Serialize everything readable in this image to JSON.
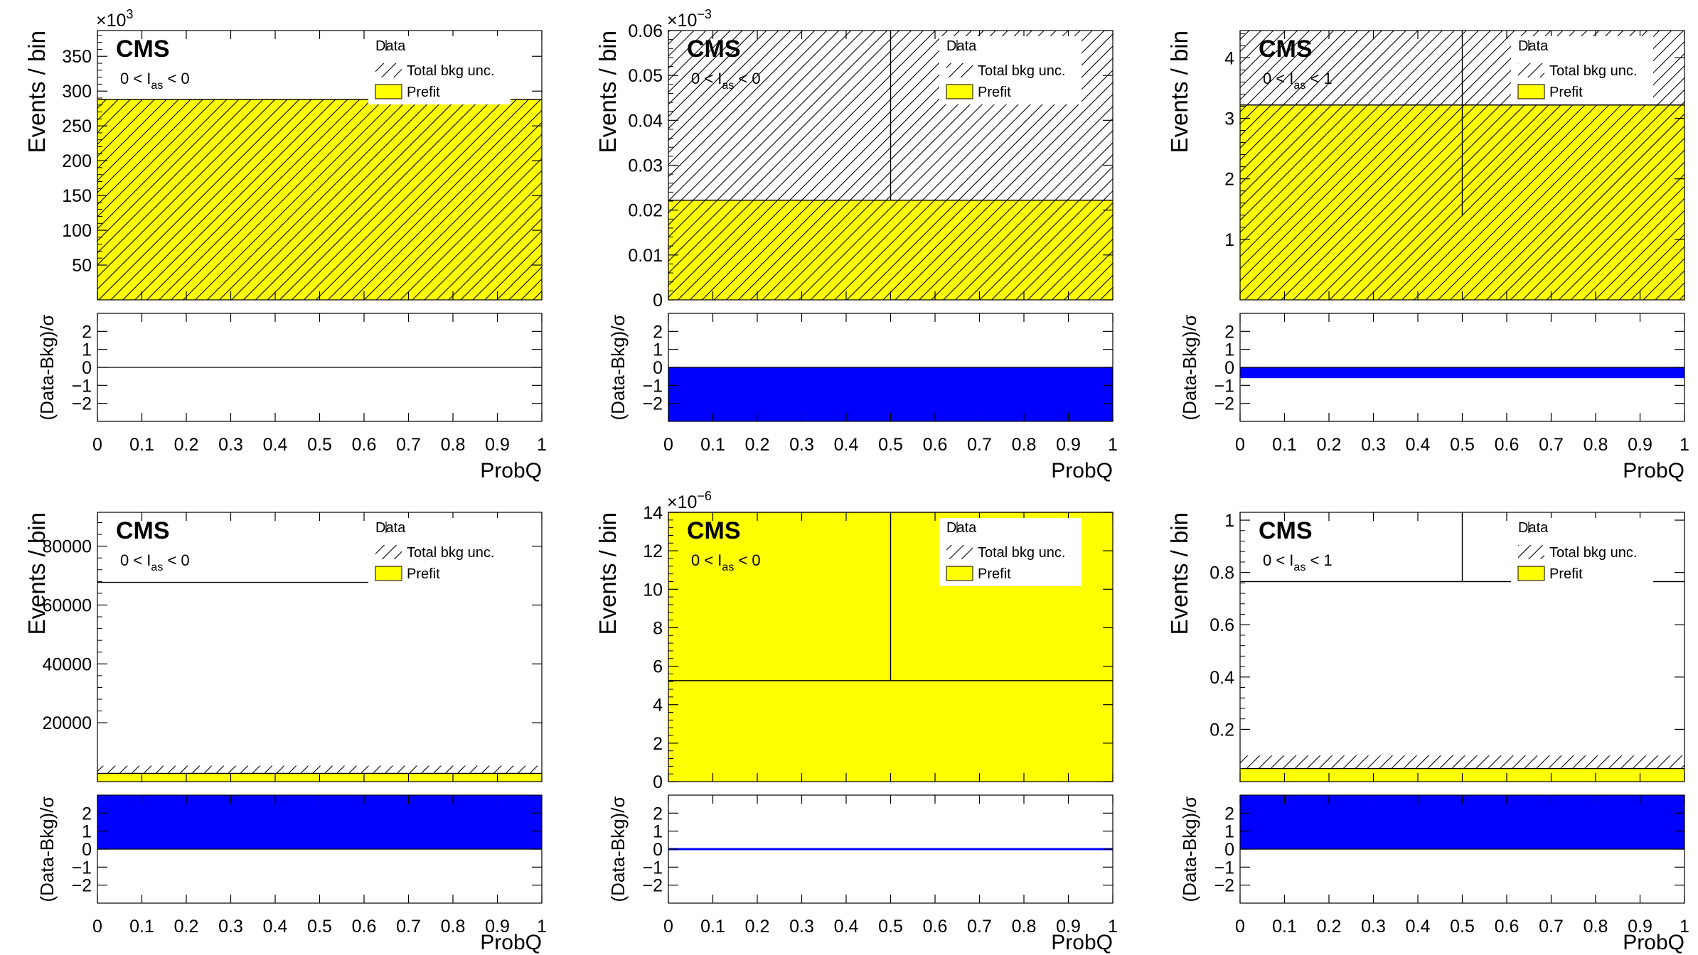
{
  "figure": {
    "colors": {
      "prefit": "#ffff00",
      "data": "#000000",
      "ratio": "#0000ff",
      "frame": "#000000",
      "hatch": "#000000"
    }
  },
  "chart_data": [
    {
      "type": "bar",
      "panel": "top-left",
      "label": "CMS",
      "region": {
        "pre": "0 < I",
        "sub": "as",
        "post": " < 0"
      },
      "legend": {
        "data": "Data",
        "unc": "Total bkg unc.",
        "prefit": "Prefit",
        "placement": "top-right"
      },
      "xlabel": "ProbQ",
      "ylabel": "Events / bin",
      "ratio_ylabel": "(Data-Bkg)/σ",
      "exponent": {
        "base": "×10",
        "power": "3"
      },
      "scale": 1000,
      "ylim": [
        0,
        387
      ],
      "yticks": [
        50,
        100,
        150,
        200,
        250,
        300,
        350
      ],
      "xlim": [
        0,
        1
      ],
      "xticks": [
        0,
        0.1,
        0.2,
        0.3,
        0.4,
        0.5,
        0.6,
        0.7,
        0.8,
        0.9,
        1
      ],
      "x_tick_labels": [
        "0",
        "0.1",
        "0.2",
        "0.3",
        "0.4",
        "0.5",
        "0.6",
        "0.7",
        "0.8",
        "0.9",
        "1"
      ],
      "ratio_ylim": [
        -3,
        3
      ],
      "ratio_yticks": [
        -2,
        -1,
        0,
        1,
        2
      ],
      "bins": [
        {
          "x0": 0,
          "x1": 1,
          "prefit": 288,
          "unc_low": 0,
          "unc_high": 288,
          "data": 288
        }
      ],
      "ratio": [
        {
          "x0": 0,
          "x1": 1,
          "value": 0
        }
      ],
      "series": [
        {
          "name": "Prefit"
        },
        {
          "name": "Total bkg unc."
        },
        {
          "name": "Data"
        }
      ]
    },
    {
      "type": "bar",
      "panel": "top-center",
      "label": "CMS",
      "region": {
        "pre": "0 < I",
        "sub": "as",
        "post": " < 0"
      },
      "legend": {
        "data": "Data",
        "unc": "Total bkg unc.",
        "prefit": "Prefit",
        "placement": "top-right"
      },
      "xlabel": "ProbQ",
      "ylabel": "Events / bin",
      "ratio_ylabel": "(Data-Bkg)/σ",
      "exponent": {
        "base": "×10",
        "power": "−3"
      },
      "scale": 0.001,
      "ylim": [
        0,
        0.06
      ],
      "yticks": [
        0,
        0.01,
        0.02,
        0.03,
        0.04,
        0.05,
        0.06
      ],
      "xlim": [
        0,
        1
      ],
      "xticks": [
        0,
        0.1,
        0.2,
        0.3,
        0.4,
        0.5,
        0.6,
        0.7,
        0.8,
        0.9,
        1
      ],
      "x_tick_labels": [
        "0",
        "0.1",
        "0.2",
        "0.3",
        "0.4",
        "0.5",
        "0.6",
        "0.7",
        "0.8",
        "0.9",
        "1"
      ],
      "ratio_ylim": [
        -3,
        3
      ],
      "ratio_yticks": [
        -2,
        -1,
        0,
        1,
        2
      ],
      "bins": [
        {
          "x0": 0,
          "x1": 1,
          "prefit": 0.0222,
          "unc_low": 0,
          "unc_high": 0.06,
          "data": 0.0222
        }
      ],
      "errorbars": [
        {
          "x": 0.5,
          "low": 0.0222,
          "high": 0.06
        }
      ],
      "ratio": [
        {
          "x0": 0,
          "x1": 1,
          "value": -3
        }
      ],
      "series": [
        {
          "name": "Prefit"
        },
        {
          "name": "Total bkg unc."
        },
        {
          "name": "Data"
        }
      ]
    },
    {
      "type": "bar",
      "panel": "top-right",
      "label": "CMS",
      "region": {
        "pre": "0 < I",
        "sub": "as",
        "post": " < 1"
      },
      "legend": {
        "data": "Data",
        "unc": "Total bkg unc.",
        "prefit": "Prefit",
        "placement": "top-right"
      },
      "xlabel": "ProbQ",
      "ylabel": "Events / bin",
      "ratio_ylabel": "(Data-Bkg)/σ",
      "exponent": null,
      "scale": 1,
      "ylim": [
        0,
        4.45
      ],
      "yticks": [
        1,
        2,
        3,
        4
      ],
      "xlim": [
        0,
        1
      ],
      "xticks": [
        0,
        0.1,
        0.2,
        0.3,
        0.4,
        0.5,
        0.6,
        0.7,
        0.8,
        0.9,
        1
      ],
      "x_tick_labels": [
        "0",
        "0.1",
        "0.2",
        "0.3",
        "0.4",
        "0.5",
        "0.6",
        "0.7",
        "0.8",
        "0.9",
        "1"
      ],
      "ratio_ylim": [
        -3,
        3
      ],
      "ratio_yticks": [
        -2,
        -1,
        0,
        1,
        2
      ],
      "bins": [
        {
          "x0": 0,
          "x1": 1,
          "prefit": 3.22,
          "unc_low": 0,
          "unc_high": 4.45,
          "data": 3.22
        }
      ],
      "errorbars": [
        {
          "x": 0.5,
          "low": 1.4,
          "high": 4.45
        }
      ],
      "ratio": [
        {
          "x0": 0,
          "x1": 1,
          "value": -0.6
        }
      ],
      "series": [
        {
          "name": "Prefit"
        },
        {
          "name": "Total bkg unc."
        },
        {
          "name": "Data"
        }
      ]
    },
    {
      "type": "bar",
      "panel": "bottom-left",
      "label": "CMS",
      "region": {
        "pre": "0 < I",
        "sub": "as",
        "post": " < 0"
      },
      "legend": {
        "data": "Data",
        "unc": "Total bkg unc.",
        "prefit": "Prefit",
        "placement": "top-right"
      },
      "xlabel": "ProbQ",
      "ylabel": "Events / bin",
      "ratio_ylabel": "(Data-Bkg)/σ",
      "exponent": null,
      "scale": 1,
      "ylim": [
        0,
        91500
      ],
      "yticks": [
        20000,
        40000,
        60000,
        80000
      ],
      "xlim": [
        0,
        1
      ],
      "xticks": [
        0,
        0.1,
        0.2,
        0.3,
        0.4,
        0.5,
        0.6,
        0.7,
        0.8,
        0.9,
        1
      ],
      "x_tick_labels": [
        "0",
        "0.1",
        "0.2",
        "0.3",
        "0.4",
        "0.5",
        "0.6",
        "0.7",
        "0.8",
        "0.9",
        "1"
      ],
      "ratio_ylim": [
        -3,
        3
      ],
      "ratio_yticks": [
        -2,
        -1,
        0,
        1,
        2
      ],
      "bins": [
        {
          "x0": 0,
          "x1": 1,
          "prefit": 2800,
          "unc_low": 2800,
          "unc_high": 5400,
          "data": 67700,
          "data_x1": 0.61
        }
      ],
      "ratio": [
        {
          "x0": 0,
          "x1": 1,
          "value": 3
        }
      ],
      "series": [
        {
          "name": "Prefit"
        },
        {
          "name": "Total bkg unc."
        },
        {
          "name": "Data"
        }
      ]
    },
    {
      "type": "bar",
      "panel": "bottom-center",
      "label": "CMS",
      "region": {
        "pre": "0 < I",
        "sub": "as",
        "post": " < 0"
      },
      "legend": {
        "data": "Data",
        "unc": "Total bkg unc.",
        "prefit": "Prefit",
        "placement": "top-right"
      },
      "xlabel": "ProbQ",
      "ylabel": "Events / bin",
      "ratio_ylabel": "(Data-Bkg)/σ",
      "exponent": {
        "base": "×10",
        "power": "−6"
      },
      "scale": 1e-06,
      "ylim": [
        0,
        14
      ],
      "yticks": [
        0,
        2,
        4,
        6,
        8,
        10,
        12,
        14
      ],
      "xlim": [
        0,
        1
      ],
      "xticks": [
        0,
        0.1,
        0.2,
        0.3,
        0.4,
        0.5,
        0.6,
        0.7,
        0.8,
        0.9,
        1
      ],
      "x_tick_labels": [
        "0",
        "0.1",
        "0.2",
        "0.3",
        "0.4",
        "0.5",
        "0.6",
        "0.7",
        "0.8",
        "0.9",
        "1"
      ],
      "ratio_ylim": [
        -3,
        3
      ],
      "ratio_yticks": [
        -2,
        -1,
        0,
        1,
        2
      ],
      "bins": [
        {
          "x0": 0,
          "x1": 1,
          "prefit": 14,
          "data": 5.25
        }
      ],
      "errorbars": [
        {
          "x": 0.5,
          "low": 5.25,
          "high": 14
        }
      ],
      "ratio": [
        {
          "x0": 0,
          "x1": 1,
          "value": 0
        }
      ],
      "series": [
        {
          "name": "Prefit"
        },
        {
          "name": "Total bkg unc."
        },
        {
          "name": "Data"
        }
      ]
    },
    {
      "type": "bar",
      "panel": "bottom-right",
      "label": "CMS",
      "region": {
        "pre": "0 < I",
        "sub": "as",
        "post": " < 1"
      },
      "legend": {
        "data": "Data",
        "unc": "Total bkg unc.",
        "prefit": "Prefit",
        "placement": "top-right"
      },
      "xlabel": "ProbQ",
      "ylabel": "Events / bin",
      "ratio_ylabel": "(Data-Bkg)/σ",
      "exponent": null,
      "scale": 1,
      "ylim": [
        0,
        1.03
      ],
      "yticks": [
        0.2,
        0.4,
        0.6,
        0.8,
        1
      ],
      "xlim": [
        0,
        1
      ],
      "xticks": [
        0,
        0.1,
        0.2,
        0.3,
        0.4,
        0.5,
        0.6,
        0.7,
        0.8,
        0.9,
        1
      ],
      "x_tick_labels": [
        "0",
        "0.1",
        "0.2",
        "0.3",
        "0.4",
        "0.5",
        "0.6",
        "0.7",
        "0.8",
        "0.9",
        "1"
      ],
      "ratio_ylim": [
        -3,
        3
      ],
      "ratio_yticks": [
        -2,
        -1,
        0,
        1,
        2
      ],
      "bins": [
        {
          "x0": 0,
          "x1": 1,
          "prefit": 0.05,
          "unc_low": 0.05,
          "unc_high": 0.1,
          "data": 0.765
        }
      ],
      "errorbars": [
        {
          "x": 0.5,
          "low": 0.765,
          "high": 1.03
        }
      ],
      "ratio": [
        {
          "x0": 0,
          "x1": 1,
          "value": 3
        }
      ],
      "series": [
        {
          "name": "Prefit"
        },
        {
          "name": "Total bkg unc."
        },
        {
          "name": "Data"
        }
      ]
    }
  ]
}
